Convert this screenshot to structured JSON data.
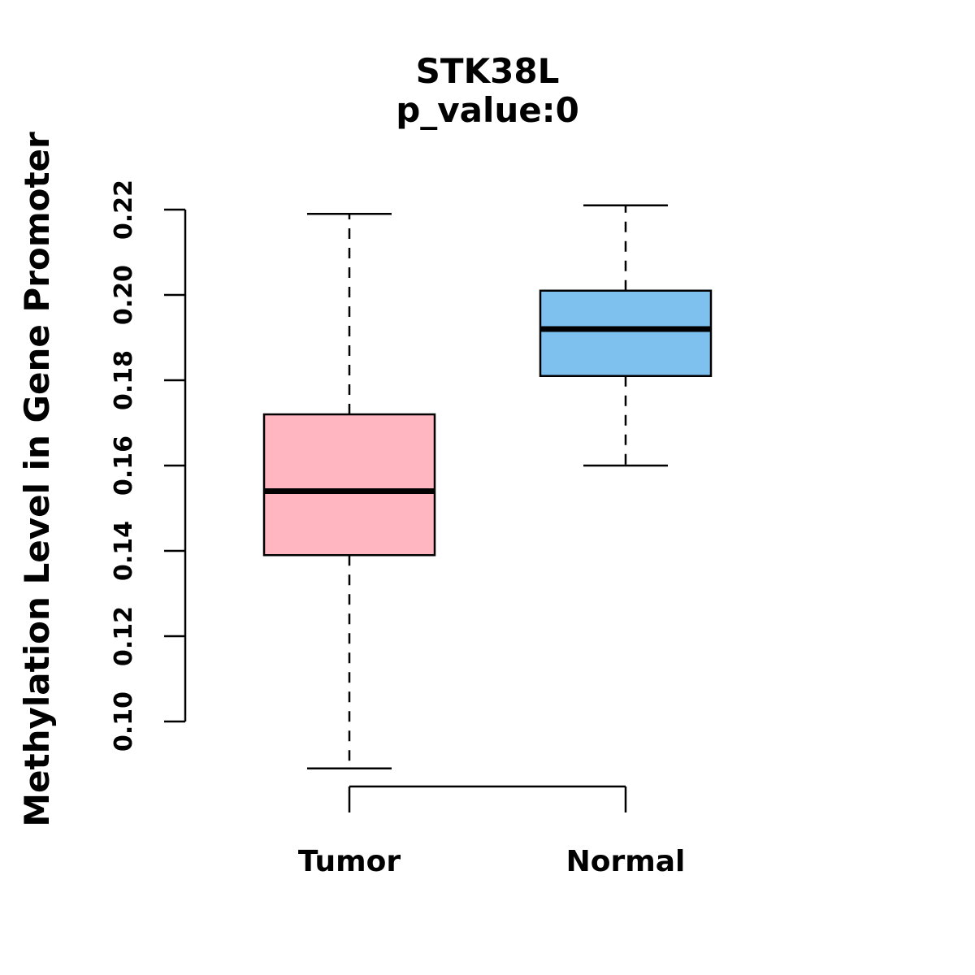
{
  "chart_data": {
    "type": "boxplot",
    "title": "STK38L",
    "subtitle": "p_value:0",
    "ylabel": "Methylation Level in Gene Promoter",
    "ylim": [
      0.088,
      0.222
    ],
    "yticks": [
      0.1,
      0.12,
      0.14,
      0.16,
      0.18,
      0.2,
      0.22
    ],
    "ytick_labels": [
      "0.10",
      "0.12",
      "0.14",
      "0.16",
      "0.18",
      "0.20",
      "0.22"
    ],
    "grid": false,
    "legend": "none",
    "groups": [
      {
        "label": "Tumor",
        "color": "#FFB6C1",
        "whisker_low": 0.089,
        "q1": 0.139,
        "median": 0.154,
        "q3": 0.172,
        "whisker_high": 0.219
      },
      {
        "label": "Normal",
        "color": "#7EC0EE",
        "whisker_low": 0.16,
        "q1": 0.181,
        "median": 0.192,
        "q3": 0.201,
        "whisker_high": 0.221
      }
    ],
    "colors": {
      "stroke": "#000000",
      "background": "#FFFFFF",
      "tumor_box": "#FFB6C1",
      "normal_box": "#7EC0EE"
    }
  }
}
